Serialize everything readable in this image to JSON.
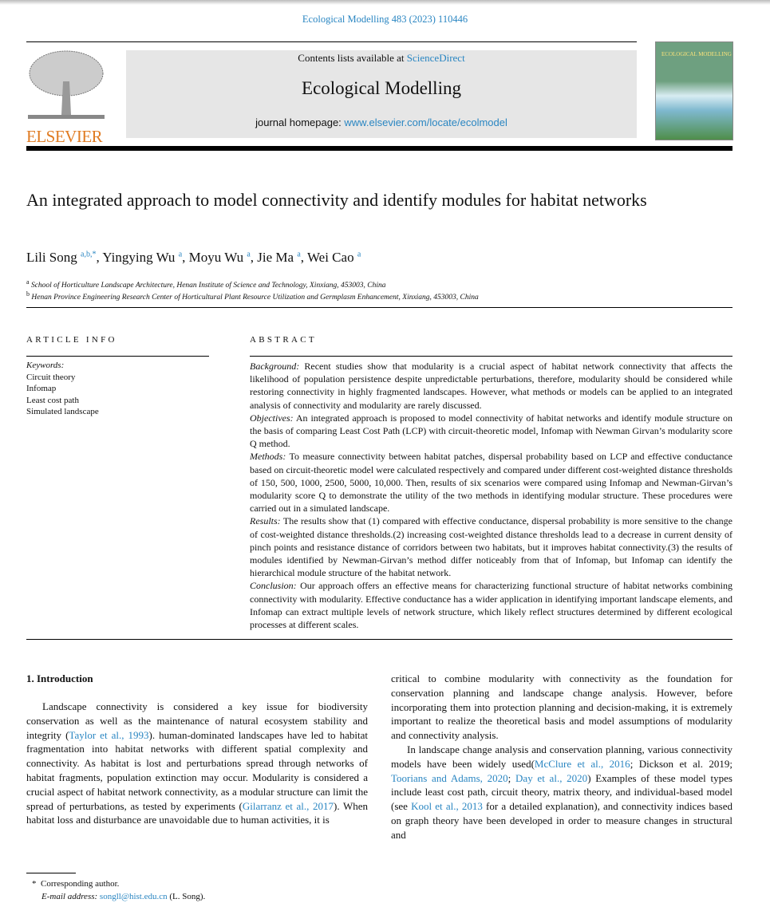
{
  "header": {
    "journal_ref": "Ecological Modelling 483 (2023) 110446",
    "contents_prefix": "Contents lists available at ",
    "contents_link": "ScienceDirect",
    "journal_title": "Ecological Modelling",
    "homepage_prefix": "journal homepage: ",
    "homepage_link": "www.elsevier.com/locate/ecolmodel",
    "publisher_logo": "ELSEVIER",
    "cover_title": "ECOLOGICAL MODELLING"
  },
  "article": {
    "title": "An integrated approach to model connectivity and identify modules for habitat networks",
    "authors": [
      {
        "name": "Lili Song",
        "sup": "a,b,*"
      },
      {
        "name": "Yingying Wu",
        "sup": "a"
      },
      {
        "name": "Moyu Wu",
        "sup": "a"
      },
      {
        "name": "Jie Ma",
        "sup": "a"
      },
      {
        "name": "Wei Cao",
        "sup": "a"
      }
    ],
    "affiliations": [
      {
        "mark": "a",
        "text": "School of Horticulture Landscape Architecture, Henan Institute of Science and Technology, Xinxiang, 453003, China"
      },
      {
        "mark": "b",
        "text": "Henan Province Engineering Research Center of Horticultural Plant Resource Utilization and Germplasm Enhancement, Xinxiang, 453003, China"
      }
    ]
  },
  "article_info": {
    "heading": "ARTICLE INFO",
    "keywords_label": "Keywords:",
    "keywords": [
      "Circuit theory",
      "Infomap",
      "Least cost path",
      "Simulated landscape"
    ]
  },
  "abstract": {
    "heading": "ABSTRACT",
    "sections": [
      {
        "label": "Background:",
        "text": " Recent studies show that modularity is a crucial aspect of habitat network connectivity that affects the likelihood of population persistence despite unpredictable perturbations, therefore, modularity should be considered while restoring connectivity in highly fragmented landscapes. However, what methods or models can be applied to an integrated analysis of connectivity and modularity are rarely discussed."
      },
      {
        "label": "Objectives:",
        "text": " An integrated approach is proposed to model connectivity of habitat networks and identify module structure on the basis of comparing Least Cost Path (LCP) with circuit-theoretic model, Infomap with Newman Girvan’s modularity score Q method."
      },
      {
        "label": "Methods:",
        "text": " To measure connectivity between habitat patches, dispersal probability based on LCP and effective conductance based on circuit-theoretic model were calculated respectively and compared under different cost-weighted distance thresholds of 150, 500, 1000, 2500, 5000, 10,000. Then, results of six scenarios were compared using Infomap and Newman-Girvan’s modularity score Q to demonstrate the utility of the two methods in identifying modular structure. These procedures were carried out in a simulated landscape."
      },
      {
        "label": "Results:",
        "text": " The results show that (1) compared with effective conductance, dispersal probability is more sensitive to the change of cost-weighted distance thresholds.(2) increasing cost-weighted distance thresholds lead to a decrease in current density of pinch points and resistance distance of corridors between two habitats, but it improves habitat connectivity.(3) the results of modules identified by Newman-Girvan’s method differ noticeably from that of Infomap, but Infomap can identify the hierarchical module structure of the habitat network."
      },
      {
        "label": "Conclusion:",
        "text": " Our approach offers an effective means for characterizing functional structure of habitat networks combining connectivity with modularity. Effective conductance has a wider application in identifying important landscape elements, and Infomap can extract multiple levels of network structure, which likely reflect structures determined by different ecological processes at different scales."
      }
    ]
  },
  "intro": {
    "heading": "1.  Introduction",
    "left": [
      [
        "Landscape connectivity is considered a key issue for biodiversity conservation as well as the maintenance of natural ecosystem stability and integrity (",
        "Taylor et al., 1993",
        "). human-dominated landscapes have led to habitat fragmentation into habitat networks with different spatial complexity and connectivity. As habitat is lost and perturbations spread through networks of habitat fragments, population extinction may occur. Modularity is considered a crucial aspect of habitat network connectivity, as a modular structure can limit the spread of perturbations, as tested by experiments (",
        "Gilarranz et al., 2017",
        "). When habitat loss and disturbance are unavoidable due to human activities, it is"
      ]
    ],
    "right_p1": "critical to combine modularity with connectivity as the foundation for conservation planning and landscape change analysis. However, before incorporating them into protection planning and decision-making, it is extremely important to realize the theoretical basis and model assumptions of modularity and connectivity analysis.",
    "right_p2": {
      "t1": "In landscape change analysis and conservation planning, various connectivity models have been widely used(",
      "l1": "McClure et al., 2016",
      "t2": "; Dickson et al. 2019; ",
      "l2": "Toorians and Adams, 2020",
      "t3": "; ",
      "l3": "Day et al., 2020",
      "t4": ") Examples of these model types include least cost path, circuit theory, matrix theory, and individual-based model (see ",
      "l4": "Kool et al., 2013",
      "t5": " for a detailed explanation), and connectivity indices based on graph theory have been developed in order to measure changes in structural and"
    }
  },
  "footnote": {
    "mark": "*",
    "corresponding": "Corresponding author.",
    "email_label": "E-mail address:",
    "email": "songll@hist.edu.cn",
    "email_suffix": " (L. Song)."
  },
  "colors": {
    "link": "#2a86c2",
    "elsevier_orange": "#e07b22",
    "banner_bg": "#e6e6e6"
  }
}
